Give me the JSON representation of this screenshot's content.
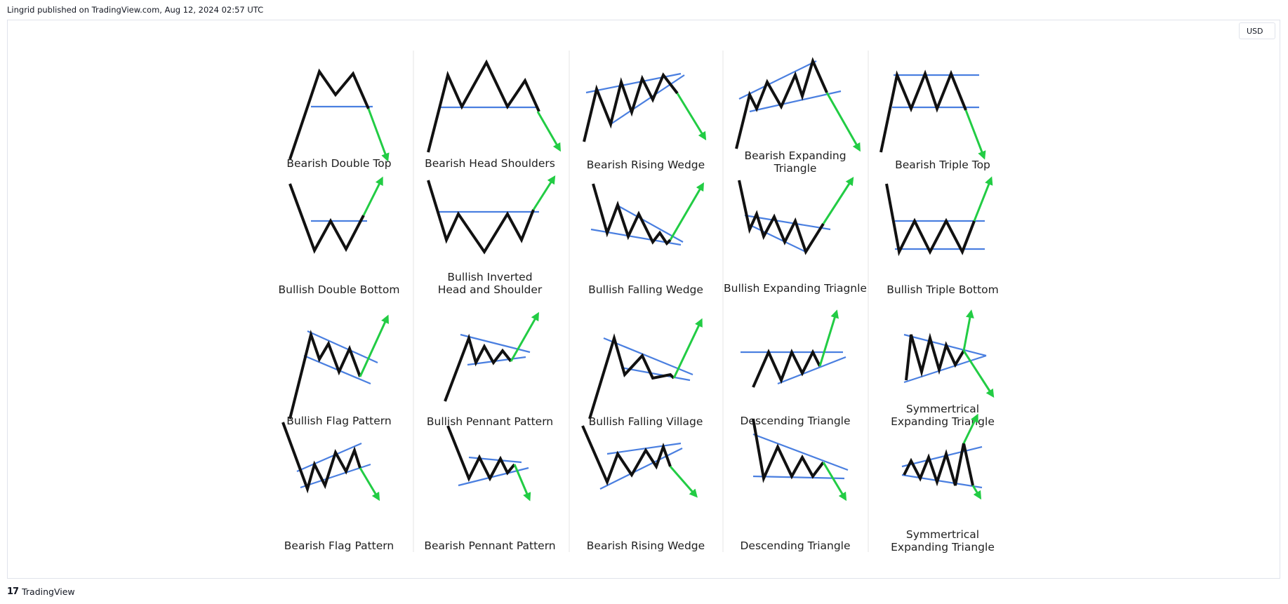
{
  "header": {
    "publisher_line": "Lingrid published on TradingView.com, Aug 12, 2024 02:57 UTC"
  },
  "toolbar": {
    "currency_label": "USD"
  },
  "footer": {
    "logo_glyph": "17",
    "brand": "TradingView"
  },
  "colors": {
    "price_line": "#111111",
    "trend_line": "#4a7fe0",
    "arrow": "#22cc44"
  },
  "patterns": [
    {
      "label": [
        "Bearish Double Top"
      ],
      "direction": "down"
    },
    {
      "label": [
        "Bearish Head Shoulders"
      ],
      "direction": "down"
    },
    {
      "label": [
        "Bearish Rising Wedge"
      ],
      "direction": "down"
    },
    {
      "label": [
        "Bearish Expanding",
        "Triangle"
      ],
      "direction": "down"
    },
    {
      "label": [
        "Bearish Triple Top"
      ],
      "direction": "down"
    },
    {
      "label": [
        "Bullish Double Bottom"
      ],
      "direction": "up"
    },
    {
      "label": [
        "Bullish Inverted",
        "Head and Shoulder"
      ],
      "direction": "up"
    },
    {
      "label": [
        "Bullish Falling Wedge"
      ],
      "direction": "up"
    },
    {
      "label": [
        "Bullish Expanding Triagnle"
      ],
      "direction": "up"
    },
    {
      "label": [
        "Bullish Triple Bottom"
      ],
      "direction": "up"
    },
    {
      "label": [
        "Bullish Flag Pattern"
      ],
      "direction": "up"
    },
    {
      "label": [
        "Bullish Pennant Pattern"
      ],
      "direction": "up"
    },
    {
      "label": [
        "Bullish Falling Village"
      ],
      "direction": "up"
    },
    {
      "label": [
        "Descending Triangle"
      ],
      "direction": "up"
    },
    {
      "label": [
        "Symmertrical",
        "Expanding Triangle"
      ],
      "direction": "both"
    },
    {
      "label": [
        "Bearish Flag Pattern"
      ],
      "direction": "down"
    },
    {
      "label": [
        "Bearish Pennant Pattern"
      ],
      "direction": "down"
    },
    {
      "label": [
        "Bearish Rising Wedge"
      ],
      "direction": "down"
    },
    {
      "label": [
        "Descending Triangle"
      ],
      "direction": "down"
    },
    {
      "label": [
        "Symmertrical",
        "Expanding Triangle"
      ],
      "direction": "up"
    }
  ]
}
